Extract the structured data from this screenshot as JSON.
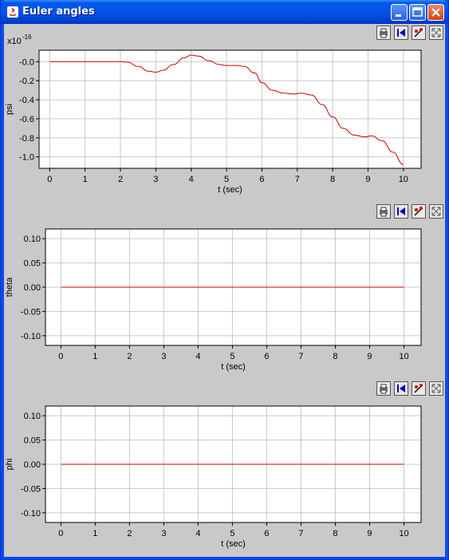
{
  "window": {
    "title": "Euler angles",
    "controls": [
      "minimize-icon",
      "maximize-icon",
      "close-icon"
    ]
  },
  "toolbar_icons": [
    "print-icon",
    "reset-icon",
    "marker-icon",
    "fit-icon"
  ],
  "chart_data": [
    {
      "type": "line",
      "ylabel": "psi",
      "xlabel": "t (sec)",
      "multiplier": "x10",
      "exponent": "-16",
      "xlim": [
        -0.3,
        10.5
      ],
      "ylim": [
        -1.12,
        0.12
      ],
      "xticks": [
        0,
        1,
        2,
        3,
        4,
        5,
        6,
        7,
        8,
        9,
        10
      ],
      "yticks": [
        -1.0,
        -0.8,
        -0.6,
        -0.4,
        -0.2,
        0.0
      ],
      "ytick_labels": [
        "-1.0",
        "-0.8",
        "-0.6",
        "-0.4",
        "-0.2",
        "-0.0"
      ],
      "grid": true,
      "color": "#cc0000",
      "series": [
        {
          "x": [
            0,
            0.5,
            1,
            1.5,
            2,
            2.2,
            2.5,
            2.8,
            3,
            3.2,
            3.5,
            3.8,
            4,
            4.2,
            4.5,
            4.8,
            5,
            5.3,
            5.5,
            5.8,
            6,
            6.3,
            6.6,
            6.9,
            7.1,
            7.4,
            7.7,
            8,
            8.3,
            8.6,
            8.9,
            9.1,
            9.4,
            9.7,
            10
          ],
          "y": [
            0,
            0,
            0,
            0,
            0,
            -0.005,
            -0.05,
            -0.1,
            -0.11,
            -0.09,
            -0.03,
            0.04,
            0.07,
            0.06,
            0.01,
            -0.03,
            -0.04,
            -0.04,
            -0.05,
            -0.12,
            -0.22,
            -0.3,
            -0.33,
            -0.34,
            -0.33,
            -0.35,
            -0.45,
            -0.58,
            -0.7,
            -0.77,
            -0.79,
            -0.78,
            -0.83,
            -0.95,
            -1.08
          ]
        }
      ]
    },
    {
      "type": "line",
      "ylabel": "theta",
      "xlabel": "t (sec)",
      "xlim": [
        -0.45,
        10.5
      ],
      "ylim": [
        -0.12,
        0.12
      ],
      "xticks": [
        0,
        1,
        2,
        3,
        4,
        5,
        6,
        7,
        8,
        9,
        10
      ],
      "yticks": [
        -0.1,
        -0.05,
        0.0,
        0.05,
        0.1
      ],
      "ytick_labels": [
        "-0.10",
        "-0.05",
        "0.00",
        "0.05",
        "0.10"
      ],
      "grid": true,
      "color": "#cc0000",
      "series": [
        {
          "x": [
            0,
            10
          ],
          "y": [
            0,
            0
          ]
        }
      ]
    },
    {
      "type": "line",
      "ylabel": "phi",
      "xlabel": "t (sec)",
      "xlim": [
        -0.45,
        10.5
      ],
      "ylim": [
        -0.12,
        0.12
      ],
      "xticks": [
        0,
        1,
        2,
        3,
        4,
        5,
        6,
        7,
        8,
        9,
        10
      ],
      "yticks": [
        -0.1,
        -0.05,
        0.0,
        0.05,
        0.1
      ],
      "ytick_labels": [
        "-0.10",
        "-0.05",
        "0.00",
        "0.05",
        "0.10"
      ],
      "grid": true,
      "color": "#cc0000",
      "series": [
        {
          "x": [
            0,
            10
          ],
          "y": [
            0,
            0
          ]
        }
      ]
    }
  ]
}
